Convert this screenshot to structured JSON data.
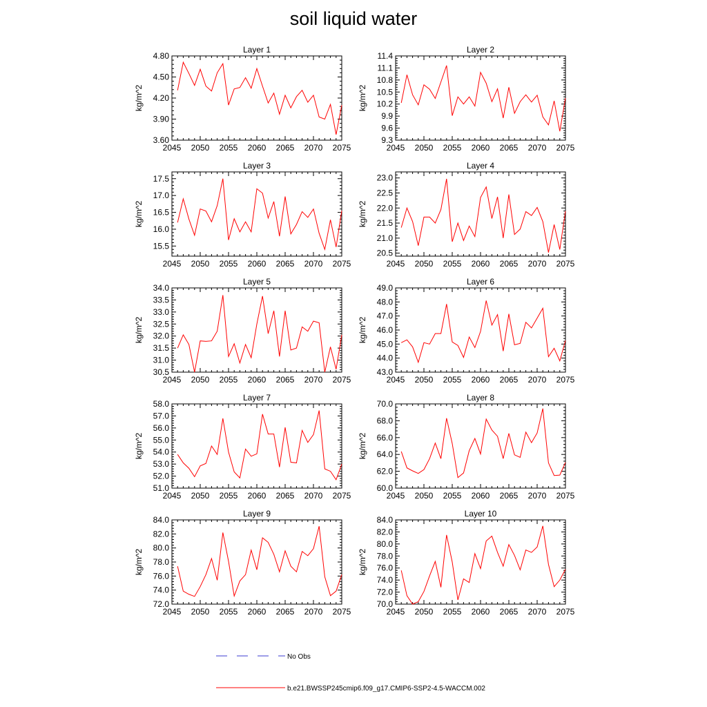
{
  "title": "soil liquid water",
  "legend": [
    {
      "label": "No Obs",
      "color": "#3a3ad0",
      "style": "dashed"
    },
    {
      "label": "b.e21.BWSSP245cmip6.f09_g17.CMIP6-SSP2-4.5-WACCM.002",
      "color": "#ff0000",
      "style": "solid"
    }
  ],
  "chart_data": [
    {
      "type": "line",
      "title": "Layer 1",
      "ylabel": "kg/m^2",
      "xlim": [
        2045,
        2075
      ],
      "ylim": [
        3.6,
        4.8
      ],
      "yticks": [
        "3.60",
        "3.90",
        "4.20",
        "4.50",
        "4.80"
      ],
      "xticks": [
        "2045",
        "2050",
        "2055",
        "2060",
        "2065",
        "2070",
        "2075"
      ],
      "x": [
        2046,
        2047,
        2048,
        2049,
        2050,
        2051,
        2052,
        2053,
        2054,
        2055,
        2056,
        2057,
        2058,
        2059,
        2060,
        2061,
        2062,
        2063,
        2064,
        2065,
        2066,
        2067,
        2068,
        2069,
        2070,
        2071,
        2072,
        2073,
        2074,
        2075
      ],
      "series": [
        {
          "values": [
            4.31,
            4.71,
            4.55,
            4.38,
            4.61,
            4.37,
            4.3,
            4.56,
            4.69,
            4.1,
            4.33,
            4.35,
            4.49,
            4.34,
            4.62,
            4.37,
            4.13,
            4.27,
            3.97,
            4.24,
            4.06,
            4.22,
            4.31,
            4.14,
            4.24,
            3.93,
            3.9,
            4.11,
            3.68,
            4.1
          ]
        }
      ]
    },
    {
      "type": "line",
      "title": "Layer 2",
      "ylabel": "kg/m^2",
      "xlim": [
        2045,
        2075
      ],
      "ylim": [
        9.3,
        11.4
      ],
      "yticks": [
        "9.3",
        "9.6",
        "9.9",
        "10.2",
        "10.5",
        "10.8",
        "11.1",
        "11.4"
      ],
      "xticks": [
        "2045",
        "2050",
        "2055",
        "2060",
        "2065",
        "2070",
        "2075"
      ],
      "x": [
        2046,
        2047,
        2048,
        2049,
        2050,
        2051,
        2052,
        2053,
        2054,
        2055,
        2056,
        2057,
        2058,
        2059,
        2060,
        2061,
        2062,
        2063,
        2064,
        2065,
        2066,
        2067,
        2068,
        2069,
        2070,
        2071,
        2072,
        2073,
        2074,
        2075
      ],
      "series": [
        {
          "values": [
            10.23,
            10.93,
            10.43,
            10.18,
            10.68,
            10.57,
            10.34,
            10.75,
            11.16,
            9.91,
            10.38,
            10.2,
            10.38,
            10.15,
            10.99,
            10.72,
            10.26,
            10.58,
            9.85,
            10.62,
            9.97,
            10.26,
            10.43,
            10.25,
            10.42,
            9.88,
            9.68,
            10.28,
            9.52,
            10.35
          ]
        }
      ]
    },
    {
      "type": "line",
      "title": "Layer 3",
      "ylabel": "kg/m^2",
      "xlim": [
        2045,
        2075
      ],
      "ylim": [
        15.2,
        17.7
      ],
      "yticks": [
        "15.5",
        "16.0",
        "16.5",
        "17.0",
        "17.5"
      ],
      "xticks": [
        "2045",
        "2050",
        "2055",
        "2060",
        "2065",
        "2070",
        "2075"
      ],
      "x": [
        2046,
        2047,
        2048,
        2049,
        2050,
        2051,
        2052,
        2053,
        2054,
        2055,
        2056,
        2057,
        2058,
        2059,
        2060,
        2061,
        2062,
        2063,
        2064,
        2065,
        2066,
        2067,
        2068,
        2069,
        2070,
        2071,
        2072,
        2073,
        2074,
        2075
      ],
      "series": [
        {
          "values": [
            16.2,
            16.9,
            16.3,
            15.82,
            16.6,
            16.54,
            16.22,
            16.7,
            17.5,
            15.68,
            16.31,
            15.92,
            16.22,
            15.92,
            17.2,
            17.07,
            16.33,
            16.82,
            15.79,
            16.97,
            15.86,
            16.14,
            16.52,
            16.35,
            16.6,
            15.88,
            15.4,
            16.28,
            15.47,
            16.55
          ]
        }
      ]
    },
    {
      "type": "line",
      "title": "Layer 4",
      "ylabel": "kg/m^2",
      "xlim": [
        2045,
        2075
      ],
      "ylim": [
        20.4,
        23.2
      ],
      "yticks": [
        "20.5",
        "21.0",
        "21.5",
        "22.0",
        "22.5",
        "23.0"
      ],
      "xticks": [
        "2045",
        "2050",
        "2055",
        "2060",
        "2065",
        "2070",
        "2075"
      ],
      "x": [
        2046,
        2047,
        2048,
        2049,
        2050,
        2051,
        2052,
        2053,
        2054,
        2055,
        2056,
        2057,
        2058,
        2059,
        2060,
        2061,
        2062,
        2063,
        2064,
        2065,
        2066,
        2067,
        2068,
        2069,
        2070,
        2071,
        2072,
        2073,
        2074,
        2075
      ],
      "series": [
        {
          "values": [
            21.35,
            22.0,
            21.55,
            20.75,
            21.7,
            21.7,
            21.5,
            21.95,
            22.97,
            20.88,
            21.5,
            20.92,
            21.4,
            21.05,
            22.35,
            22.7,
            21.65,
            22.37,
            21.0,
            22.45,
            21.12,
            21.3,
            21.88,
            21.75,
            22.02,
            21.55,
            20.52,
            21.45,
            20.62,
            21.9
          ]
        }
      ]
    },
    {
      "type": "line",
      "title": "Layer 5",
      "ylabel": "kg/m^2",
      "xlim": [
        2045,
        2075
      ],
      "ylim": [
        30.5,
        34.0
      ],
      "yticks": [
        "30.5",
        "31.0",
        "31.5",
        "32.0",
        "32.5",
        "33.0",
        "33.5",
        "34.0"
      ],
      "xticks": [
        "2045",
        "2050",
        "2055",
        "2060",
        "2065",
        "2070",
        "2075"
      ],
      "x": [
        2046,
        2047,
        2048,
        2049,
        2050,
        2051,
        2052,
        2053,
        2054,
        2055,
        2056,
        2057,
        2058,
        2059,
        2060,
        2061,
        2062,
        2063,
        2064,
        2065,
        2066,
        2067,
        2068,
        2069,
        2070,
        2071,
        2072,
        2073,
        2074,
        2075
      ],
      "series": [
        {
          "values": [
            31.5,
            32.05,
            31.65,
            30.5,
            31.8,
            31.78,
            31.8,
            32.2,
            33.7,
            31.15,
            31.68,
            30.88,
            31.65,
            31.1,
            32.5,
            33.66,
            32.1,
            33.05,
            31.15,
            33.05,
            31.42,
            31.5,
            32.38,
            32.2,
            32.62,
            32.55,
            30.5,
            31.55,
            30.62,
            32.05
          ]
        }
      ]
    },
    {
      "type": "line",
      "title": "Layer 6",
      "ylabel": "kg/m^2",
      "xlim": [
        2045,
        2075
      ],
      "ylim": [
        43.0,
        49.0
      ],
      "yticks": [
        "43.0",
        "44.0",
        "45.0",
        "46.0",
        "47.0",
        "48.0",
        "49.0"
      ],
      "xticks": [
        "2045",
        "2050",
        "2055",
        "2060",
        "2065",
        "2070",
        "2075"
      ],
      "x": [
        2046,
        2047,
        2048,
        2049,
        2050,
        2051,
        2052,
        2053,
        2054,
        2055,
        2056,
        2057,
        2058,
        2059,
        2060,
        2061,
        2062,
        2063,
        2064,
        2065,
        2066,
        2067,
        2068,
        2069,
        2070,
        2071,
        2072,
        2073,
        2074,
        2075
      ],
      "series": [
        {
          "values": [
            45.1,
            45.3,
            44.8,
            43.7,
            45.1,
            45.0,
            45.75,
            45.75,
            47.85,
            45.15,
            44.9,
            44.05,
            45.5,
            44.75,
            45.9,
            48.1,
            46.35,
            47.1,
            44.5,
            47.15,
            44.95,
            45.05,
            46.55,
            46.15,
            46.85,
            47.55,
            44.1,
            44.7,
            43.8,
            45.25
          ]
        }
      ]
    },
    {
      "type": "line",
      "title": "Layer 7",
      "ylabel": "kg/m^2",
      "xlim": [
        2045,
        2075
      ],
      "ylim": [
        51.0,
        58.0
      ],
      "yticks": [
        "51.0",
        "52.0",
        "53.0",
        "54.0",
        "55.0",
        "56.0",
        "57.0",
        "58.0"
      ],
      "xticks": [
        "2045",
        "2050",
        "2055",
        "2060",
        "2065",
        "2070",
        "2075"
      ],
      "x": [
        2046,
        2047,
        2048,
        2049,
        2050,
        2051,
        2052,
        2053,
        2054,
        2055,
        2056,
        2057,
        2058,
        2059,
        2060,
        2061,
        2062,
        2063,
        2064,
        2065,
        2066,
        2067,
        2068,
        2069,
        2070,
        2071,
        2072,
        2073,
        2074,
        2075
      ],
      "series": [
        {
          "values": [
            53.8,
            53.1,
            52.65,
            51.95,
            52.85,
            53.05,
            54.5,
            53.8,
            56.8,
            54.0,
            52.35,
            51.85,
            54.25,
            53.65,
            53.85,
            57.15,
            55.5,
            55.5,
            52.75,
            56.05,
            53.15,
            53.1,
            55.8,
            54.8,
            55.45,
            57.45,
            52.6,
            52.4,
            51.7,
            53.0
          ]
        }
      ]
    },
    {
      "type": "line",
      "title": "Layer 8",
      "ylabel": "kg/m^2",
      "xlim": [
        2045,
        2075
      ],
      "ylim": [
        60.0,
        70.0
      ],
      "yticks": [
        "60.0",
        "62.0",
        "64.0",
        "66.0",
        "68.0",
        "70.0"
      ],
      "xticks": [
        "2045",
        "2050",
        "2055",
        "2060",
        "2065",
        "2070",
        "2075"
      ],
      "x": [
        2046,
        2047,
        2048,
        2049,
        2050,
        2051,
        2052,
        2053,
        2054,
        2055,
        2056,
        2057,
        2058,
        2059,
        2060,
        2061,
        2062,
        2063,
        2064,
        2065,
        2066,
        2067,
        2068,
        2069,
        2070,
        2071,
        2072,
        2073,
        2074,
        2075
      ],
      "series": [
        {
          "values": [
            64.35,
            62.4,
            62.05,
            61.75,
            62.2,
            63.5,
            65.35,
            63.5,
            68.3,
            65.3,
            61.25,
            61.8,
            64.45,
            65.9,
            64.05,
            68.2,
            66.9,
            66.15,
            63.5,
            66.5,
            63.95,
            63.65,
            66.65,
            65.4,
            66.55,
            69.45,
            63.0,
            61.5,
            61.55,
            63.05
          ]
        }
      ]
    },
    {
      "type": "line",
      "title": "Layer 9",
      "ylabel": "kg/m^2",
      "xlim": [
        2045,
        2075
      ],
      "ylim": [
        72.0,
        84.0
      ],
      "yticks": [
        "72.0",
        "74.0",
        "76.0",
        "78.0",
        "80.0",
        "82.0",
        "84.0"
      ],
      "xticks": [
        "2045",
        "2050",
        "2055",
        "2060",
        "2065",
        "2070",
        "2075"
      ],
      "x": [
        2046,
        2047,
        2048,
        2049,
        2050,
        2051,
        2052,
        2053,
        2054,
        2055,
        2056,
        2057,
        2058,
        2059,
        2060,
        2061,
        2062,
        2063,
        2064,
        2065,
        2066,
        2067,
        2068,
        2069,
        2070,
        2071,
        2072,
        2073,
        2074,
        2075
      ],
      "series": [
        {
          "values": [
            77.4,
            73.85,
            73.4,
            73.1,
            74.5,
            76.2,
            78.5,
            75.4,
            82.2,
            78.1,
            73.15,
            75.3,
            76.2,
            79.7,
            76.9,
            81.45,
            80.8,
            79.1,
            76.6,
            79.6,
            77.4,
            76.6,
            79.5,
            78.9,
            79.9,
            83.1,
            75.9,
            73.2,
            73.85,
            76.2
          ]
        }
      ]
    },
    {
      "type": "line",
      "title": "Layer 10",
      "ylabel": "kg/m^2",
      "xlim": [
        2045,
        2075
      ],
      "ylim": [
        70.0,
        84.0
      ],
      "yticks": [
        "70.0",
        "72.0",
        "74.0",
        "76.0",
        "78.0",
        "80.0",
        "82.0",
        "84.0"
      ],
      "xticks": [
        "2045",
        "2050",
        "2055",
        "2060",
        "2065",
        "2070",
        "2075"
      ],
      "x": [
        2046,
        2047,
        2048,
        2049,
        2050,
        2051,
        2052,
        2053,
        2054,
        2055,
        2056,
        2057,
        2058,
        2059,
        2060,
        2061,
        2062,
        2063,
        2064,
        2065,
        2066,
        2067,
        2068,
        2069,
        2070,
        2071,
        2072,
        2073,
        2074,
        2075
      ],
      "series": [
        {
          "values": [
            75.6,
            71.4,
            70.0,
            70.4,
            72.1,
            74.7,
            77.1,
            72.8,
            81.5,
            77.0,
            70.7,
            74.2,
            73.6,
            78.4,
            75.9,
            80.5,
            81.3,
            78.6,
            76.3,
            79.9,
            78.1,
            75.7,
            79.0,
            78.6,
            79.5,
            83.0,
            76.6,
            72.9,
            74.0,
            75.8
          ]
        }
      ]
    }
  ]
}
